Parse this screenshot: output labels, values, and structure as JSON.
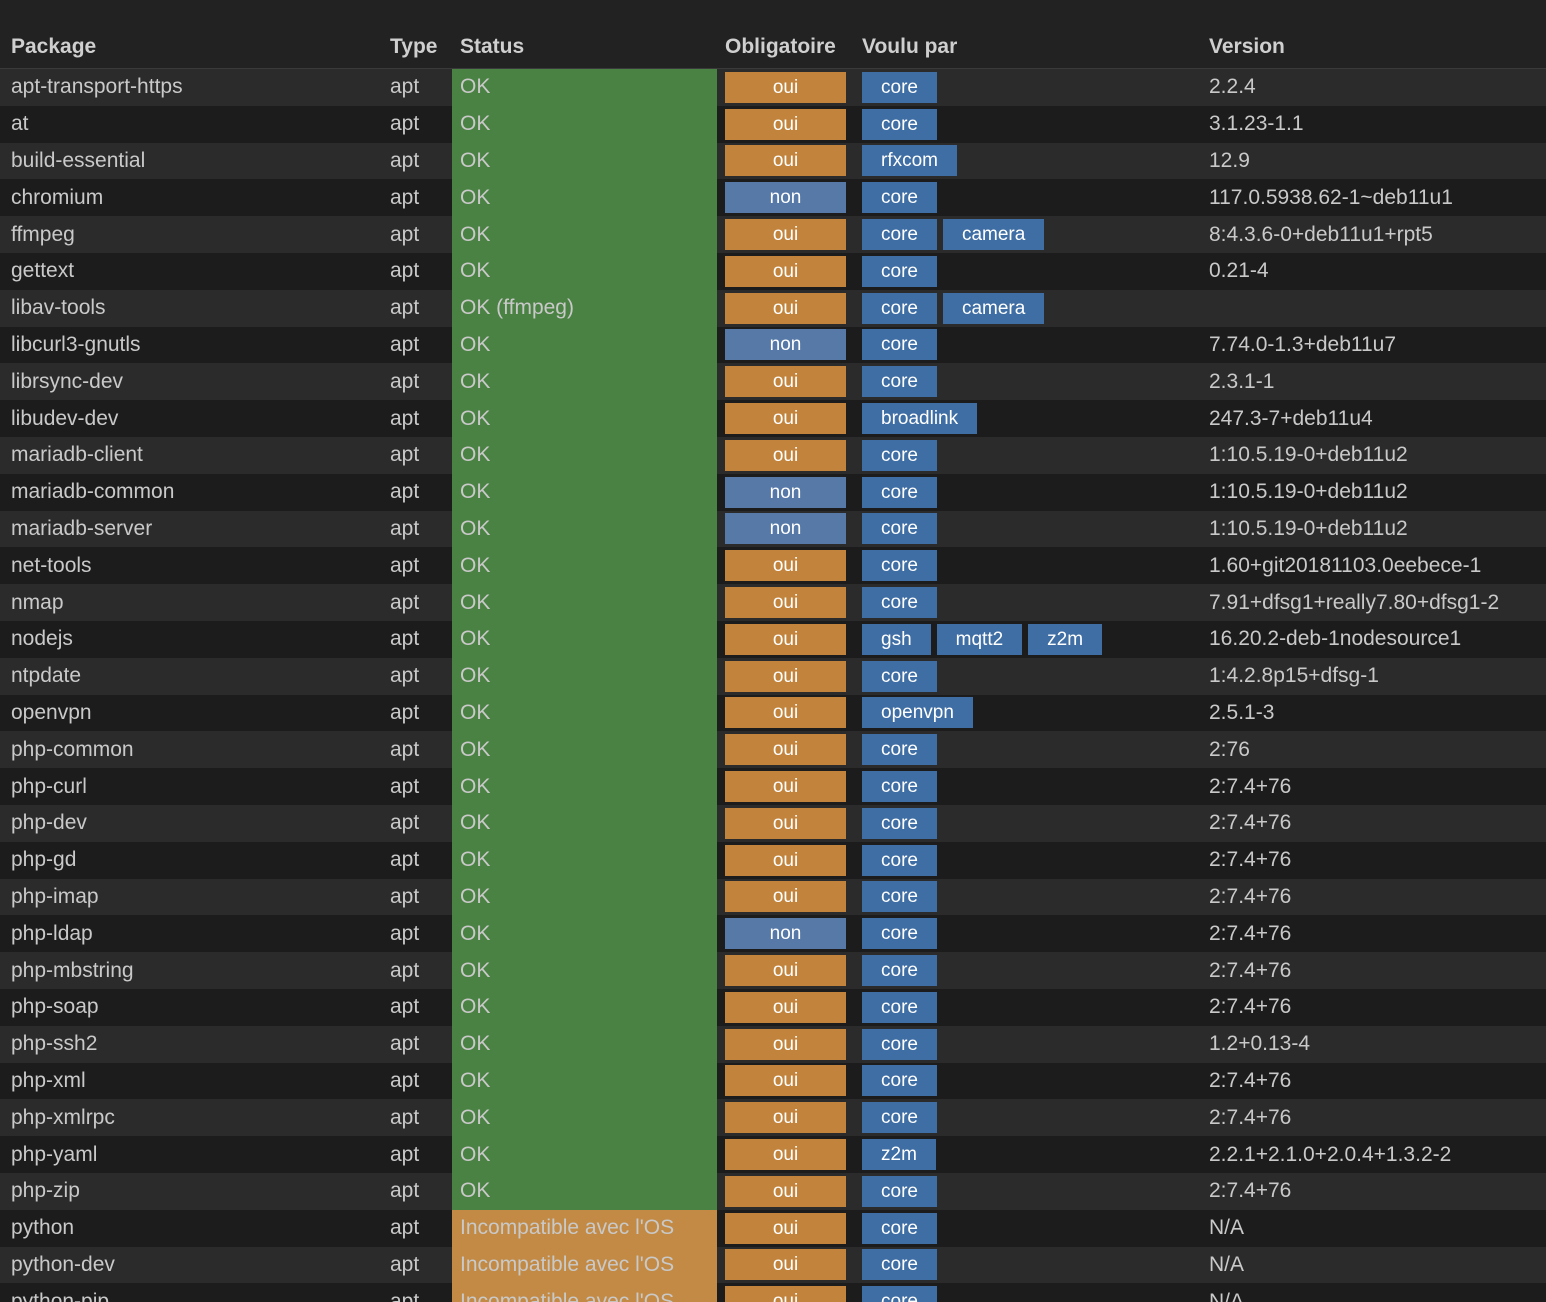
{
  "headers": {
    "package": "Package",
    "type": "Type",
    "status": "Status",
    "obligatoire": "Obligatoire",
    "voulu_par": "Voulu par",
    "version": "Version"
  },
  "colors": {
    "status_ok": "#4a8243",
    "status_incompatible": "#c28a44",
    "oui": "#c2843c",
    "non": "#5779a8",
    "wanted_by": "#3f6ea4"
  },
  "rows": [
    {
      "package": "apt-transport-https",
      "type": "apt",
      "status": "OK",
      "status_kind": "ok",
      "obligatoire": "oui",
      "wanted_by": [
        "core"
      ],
      "version": "2.2.4"
    },
    {
      "package": "at",
      "type": "apt",
      "status": "OK",
      "status_kind": "ok",
      "obligatoire": "oui",
      "wanted_by": [
        "core"
      ],
      "version": "3.1.23-1.1"
    },
    {
      "package": "build-essential",
      "type": "apt",
      "status": "OK",
      "status_kind": "ok",
      "obligatoire": "oui",
      "wanted_by": [
        "rfxcom"
      ],
      "version": "12.9"
    },
    {
      "package": "chromium",
      "type": "apt",
      "status": "OK",
      "status_kind": "ok",
      "obligatoire": "non",
      "wanted_by": [
        "core"
      ],
      "version": "117.0.5938.62-1~deb11u1"
    },
    {
      "package": "ffmpeg",
      "type": "apt",
      "status": "OK",
      "status_kind": "ok",
      "obligatoire": "oui",
      "wanted_by": [
        "core",
        "camera"
      ],
      "version": "8:4.3.6-0+deb11u1+rpt5"
    },
    {
      "package": "gettext",
      "type": "apt",
      "status": "OK",
      "status_kind": "ok",
      "obligatoire": "oui",
      "wanted_by": [
        "core"
      ],
      "version": "0.21-4"
    },
    {
      "package": "libav-tools",
      "type": "apt",
      "status": "OK (ffmpeg)",
      "status_kind": "ok",
      "obligatoire": "oui",
      "wanted_by": [
        "core",
        "camera"
      ],
      "version": ""
    },
    {
      "package": "libcurl3-gnutls",
      "type": "apt",
      "status": "OK",
      "status_kind": "ok",
      "obligatoire": "non",
      "wanted_by": [
        "core"
      ],
      "version": "7.74.0-1.3+deb11u7"
    },
    {
      "package": "librsync-dev",
      "type": "apt",
      "status": "OK",
      "status_kind": "ok",
      "obligatoire": "oui",
      "wanted_by": [
        "core"
      ],
      "version": "2.3.1-1"
    },
    {
      "package": "libudev-dev",
      "type": "apt",
      "status": "OK",
      "status_kind": "ok",
      "obligatoire": "oui",
      "wanted_by": [
        "broadlink"
      ],
      "version": "247.3-7+deb11u4"
    },
    {
      "package": "mariadb-client",
      "type": "apt",
      "status": "OK",
      "status_kind": "ok",
      "obligatoire": "oui",
      "wanted_by": [
        "core"
      ],
      "version": "1:10.5.19-0+deb11u2"
    },
    {
      "package": "mariadb-common",
      "type": "apt",
      "status": "OK",
      "status_kind": "ok",
      "obligatoire": "non",
      "wanted_by": [
        "core"
      ],
      "version": "1:10.5.19-0+deb11u2"
    },
    {
      "package": "mariadb-server",
      "type": "apt",
      "status": "OK",
      "status_kind": "ok",
      "obligatoire": "non",
      "wanted_by": [
        "core"
      ],
      "version": "1:10.5.19-0+deb11u2"
    },
    {
      "package": "net-tools",
      "type": "apt",
      "status": "OK",
      "status_kind": "ok",
      "obligatoire": "oui",
      "wanted_by": [
        "core"
      ],
      "version": "1.60+git20181103.0eebece-1"
    },
    {
      "package": "nmap",
      "type": "apt",
      "status": "OK",
      "status_kind": "ok",
      "obligatoire": "oui",
      "wanted_by": [
        "core"
      ],
      "version": "7.91+dfsg1+really7.80+dfsg1-2"
    },
    {
      "package": "nodejs",
      "type": "apt",
      "status": "OK",
      "status_kind": "ok",
      "obligatoire": "oui",
      "wanted_by": [
        "gsh",
        "mqtt2",
        "z2m"
      ],
      "version": "16.20.2-deb-1nodesource1"
    },
    {
      "package": "ntpdate",
      "type": "apt",
      "status": "OK",
      "status_kind": "ok",
      "obligatoire": "oui",
      "wanted_by": [
        "core"
      ],
      "version": "1:4.2.8p15+dfsg-1"
    },
    {
      "package": "openvpn",
      "type": "apt",
      "status": "OK",
      "status_kind": "ok",
      "obligatoire": "oui",
      "wanted_by": [
        "openvpn"
      ],
      "version": "2.5.1-3"
    },
    {
      "package": "php-common",
      "type": "apt",
      "status": "OK",
      "status_kind": "ok",
      "obligatoire": "oui",
      "wanted_by": [
        "core"
      ],
      "version": "2:76"
    },
    {
      "package": "php-curl",
      "type": "apt",
      "status": "OK",
      "status_kind": "ok",
      "obligatoire": "oui",
      "wanted_by": [
        "core"
      ],
      "version": "2:7.4+76"
    },
    {
      "package": "php-dev",
      "type": "apt",
      "status": "OK",
      "status_kind": "ok",
      "obligatoire": "oui",
      "wanted_by": [
        "core"
      ],
      "version": "2:7.4+76"
    },
    {
      "package": "php-gd",
      "type": "apt",
      "status": "OK",
      "status_kind": "ok",
      "obligatoire": "oui",
      "wanted_by": [
        "core"
      ],
      "version": "2:7.4+76"
    },
    {
      "package": "php-imap",
      "type": "apt",
      "status": "OK",
      "status_kind": "ok",
      "obligatoire": "oui",
      "wanted_by": [
        "core"
      ],
      "version": "2:7.4+76"
    },
    {
      "package": "php-ldap",
      "type": "apt",
      "status": "OK",
      "status_kind": "ok",
      "obligatoire": "non",
      "wanted_by": [
        "core"
      ],
      "version": "2:7.4+76"
    },
    {
      "package": "php-mbstring",
      "type": "apt",
      "status": "OK",
      "status_kind": "ok",
      "obligatoire": "oui",
      "wanted_by": [
        "core"
      ],
      "version": "2:7.4+76"
    },
    {
      "package": "php-soap",
      "type": "apt",
      "status": "OK",
      "status_kind": "ok",
      "obligatoire": "oui",
      "wanted_by": [
        "core"
      ],
      "version": "2:7.4+76"
    },
    {
      "package": "php-ssh2",
      "type": "apt",
      "status": "OK",
      "status_kind": "ok",
      "obligatoire": "oui",
      "wanted_by": [
        "core"
      ],
      "version": "1.2+0.13-4"
    },
    {
      "package": "php-xml",
      "type": "apt",
      "status": "OK",
      "status_kind": "ok",
      "obligatoire": "oui",
      "wanted_by": [
        "core"
      ],
      "version": "2:7.4+76"
    },
    {
      "package": "php-xmlrpc",
      "type": "apt",
      "status": "OK",
      "status_kind": "ok",
      "obligatoire": "oui",
      "wanted_by": [
        "core"
      ],
      "version": "2:7.4+76"
    },
    {
      "package": "php-yaml",
      "type": "apt",
      "status": "OK",
      "status_kind": "ok",
      "obligatoire": "oui",
      "wanted_by": [
        "z2m"
      ],
      "version": "2.2.1+2.1.0+2.0.4+1.3.2-2"
    },
    {
      "package": "php-zip",
      "type": "apt",
      "status": "OK",
      "status_kind": "ok",
      "obligatoire": "oui",
      "wanted_by": [
        "core"
      ],
      "version": "2:7.4+76"
    },
    {
      "package": "python",
      "type": "apt",
      "status": "Incompatible avec l'OS",
      "status_kind": "bad",
      "obligatoire": "oui",
      "wanted_by": [
        "core"
      ],
      "version": "N/A"
    },
    {
      "package": "python-dev",
      "type": "apt",
      "status": "Incompatible avec l'OS",
      "status_kind": "bad",
      "obligatoire": "oui",
      "wanted_by": [
        "core"
      ],
      "version": "N/A"
    },
    {
      "package": "python-pip",
      "type": "apt",
      "status": "Incompatible avec l'OS",
      "status_kind": "bad",
      "obligatoire": "oui",
      "wanted_by": [
        "core"
      ],
      "version": "N/A"
    }
  ]
}
